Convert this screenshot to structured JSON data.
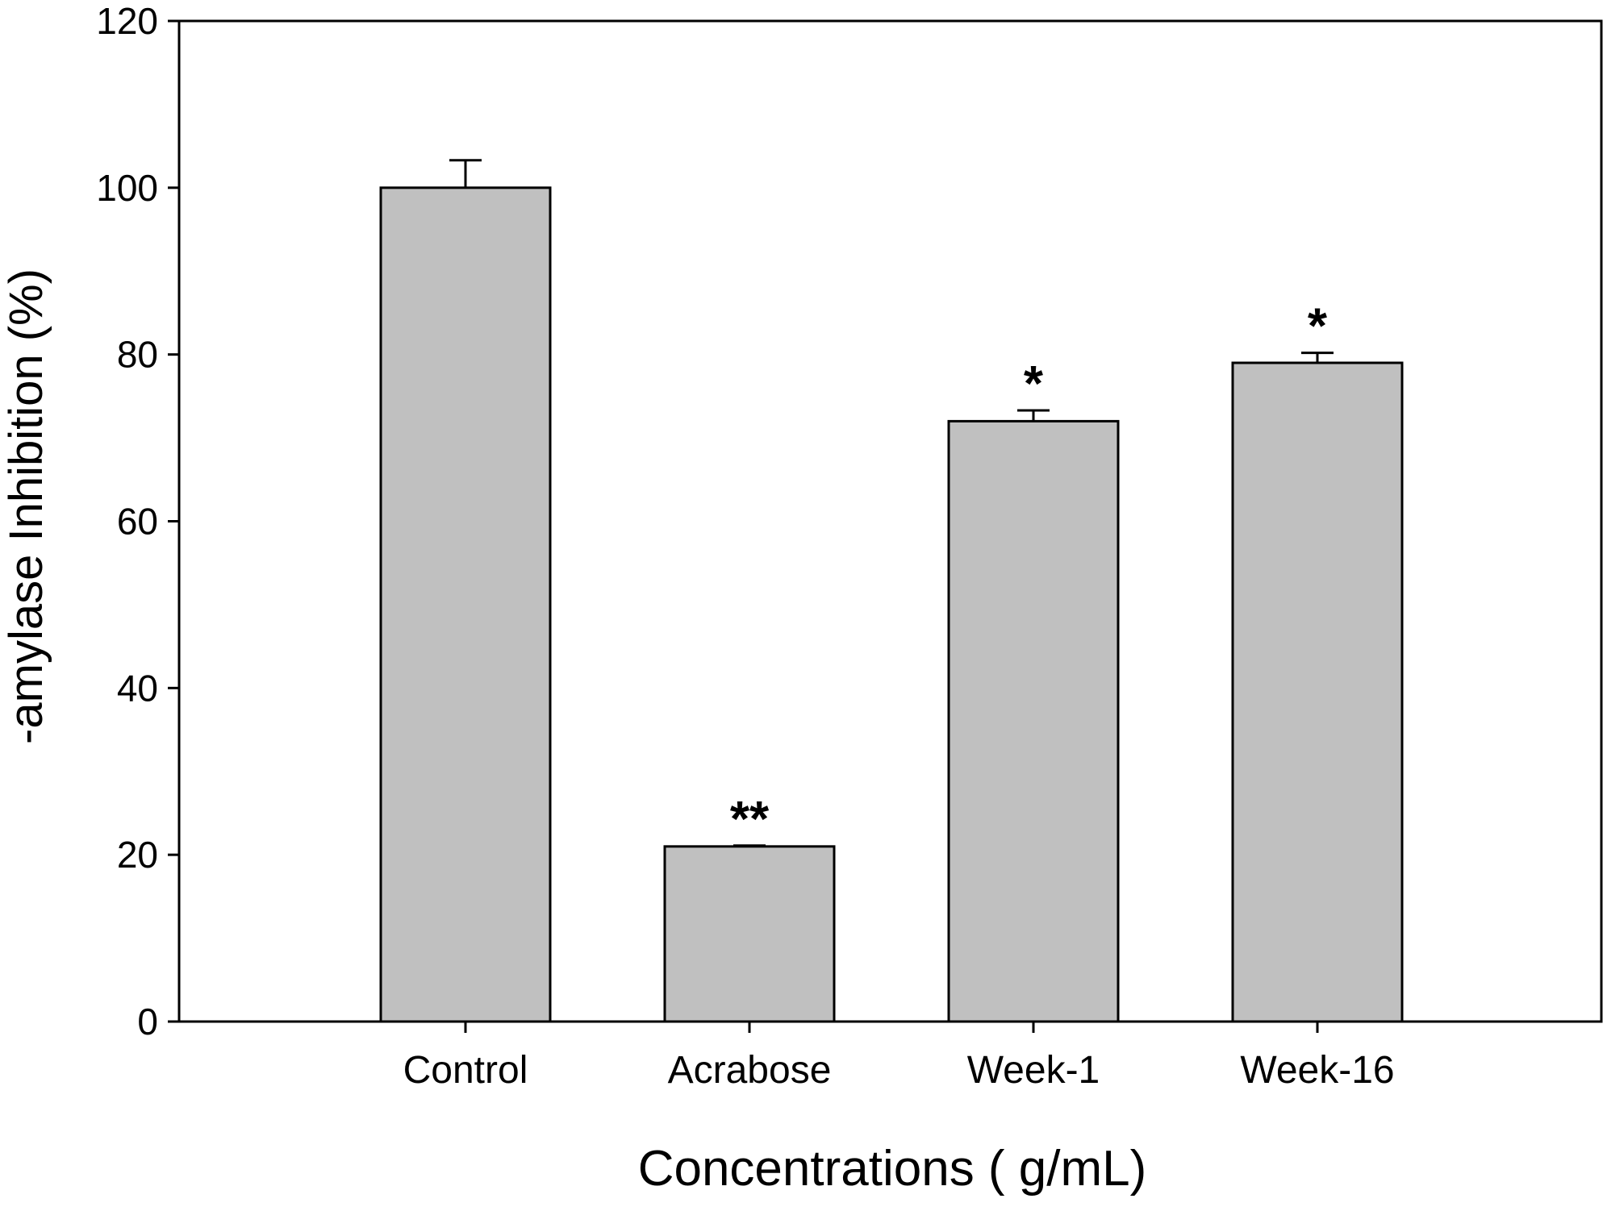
{
  "chart_data": {
    "type": "bar",
    "xlabel": "Concentrations ( g/mL)",
    "ylabel": "-amylase Inhibition (%)",
    "categories": [
      "Control",
      "Acrabose",
      "Week-1",
      "Week-16"
    ],
    "values": [
      100,
      21,
      72,
      79
    ],
    "error_bars": [
      3.3,
      0.1,
      1.3,
      1.2
    ],
    "annotations": [
      "",
      "**",
      "*",
      "*"
    ],
    "ylim": [
      0,
      120
    ],
    "yticks": [
      0,
      20,
      40,
      60,
      80,
      100,
      120
    ],
    "grid": false,
    "legend": "none",
    "colors": {
      "bar_fill": "#c0c0c0",
      "bar_stroke": "#000000",
      "axis": "#000000"
    }
  }
}
